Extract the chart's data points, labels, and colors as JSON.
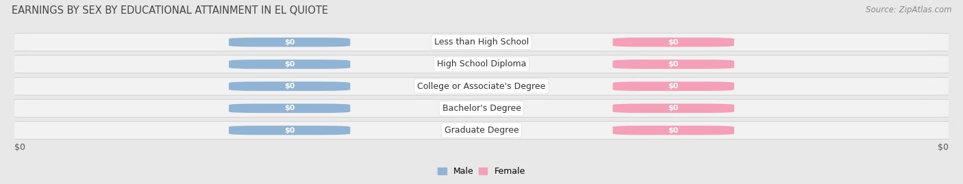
{
  "title": "EARNINGS BY SEX BY EDUCATIONAL ATTAINMENT IN EL QUIOTE",
  "source": "Source: ZipAtlas.com",
  "categories": [
    "Less than High School",
    "High School Diploma",
    "College or Associate's Degree",
    "Bachelor's Degree",
    "Graduate Degree"
  ],
  "male_color": "#92b4d4",
  "female_color": "#f4a0b8",
  "male_label": "Male",
  "female_label": "Female",
  "bar_label": "$0",
  "background_color": "#e8e8e8",
  "row_bg_color": "#f2f2f2",
  "title_fontsize": 10.5,
  "source_fontsize": 8.5,
  "cat_fontsize": 9,
  "val_fontsize": 8,
  "axis_label": "$0",
  "axis_label_fontsize": 9,
  "legend_fontsize": 9
}
